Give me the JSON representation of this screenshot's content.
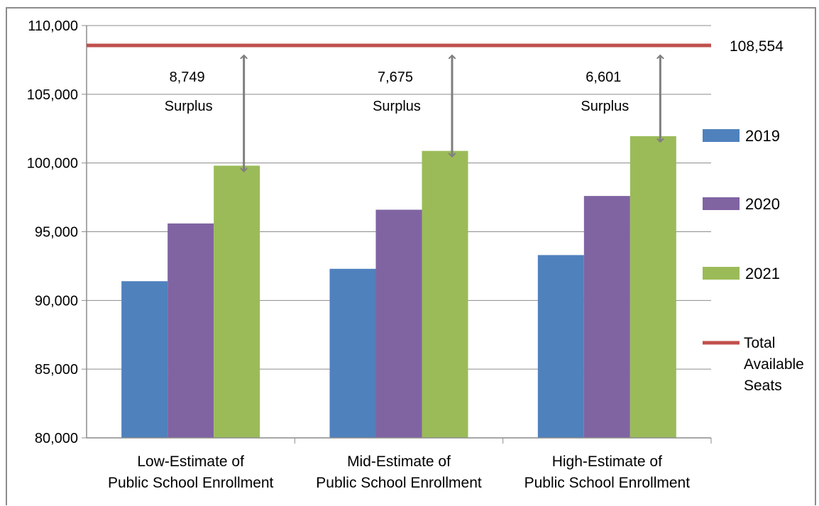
{
  "chart_data": {
    "type": "bar",
    "categories": [
      [
        "Low-Estimate of",
        "Public School Enrollment"
      ],
      [
        "Mid-Estimate of",
        "Public School Enrollment"
      ],
      [
        "High-Estimate of",
        "Public School Enrollment"
      ]
    ],
    "series": [
      {
        "name": "2019",
        "color": "#4f81bd",
        "values": [
          91400,
          92300,
          93300
        ]
      },
      {
        "name": "2020",
        "color": "#8064a2",
        "values": [
          95600,
          96600,
          97600
        ]
      },
      {
        "name": "2021",
        "color": "#9bbb59",
        "values": [
          99805,
          100879,
          101953
        ]
      }
    ],
    "reference_line": {
      "name": "Total Available Seats",
      "legend_lines": [
        "Total",
        "Available",
        "Seats"
      ],
      "value": 108554,
      "label": "108,554",
      "color": "#c0504d"
    },
    "annotations": [
      {
        "category_index": 0,
        "value_text": "8,749",
        "label": "Surplus"
      },
      {
        "category_index": 1,
        "value_text": "7,675",
        "label": "Surplus"
      },
      {
        "category_index": 2,
        "value_text": "6,601",
        "label": "Surplus"
      }
    ],
    "ylim": [
      80000,
      110000
    ],
    "y_ticks": [
      80000,
      85000,
      90000,
      95000,
      100000,
      105000,
      110000
    ],
    "y_tick_labels": [
      "80,000",
      "85,000",
      "90,000",
      "95,000",
      "100,000",
      "105,000",
      "110,000"
    ],
    "grid": true,
    "legend_position": "right",
    "title": "",
    "xlabel": "",
    "ylabel": ""
  }
}
